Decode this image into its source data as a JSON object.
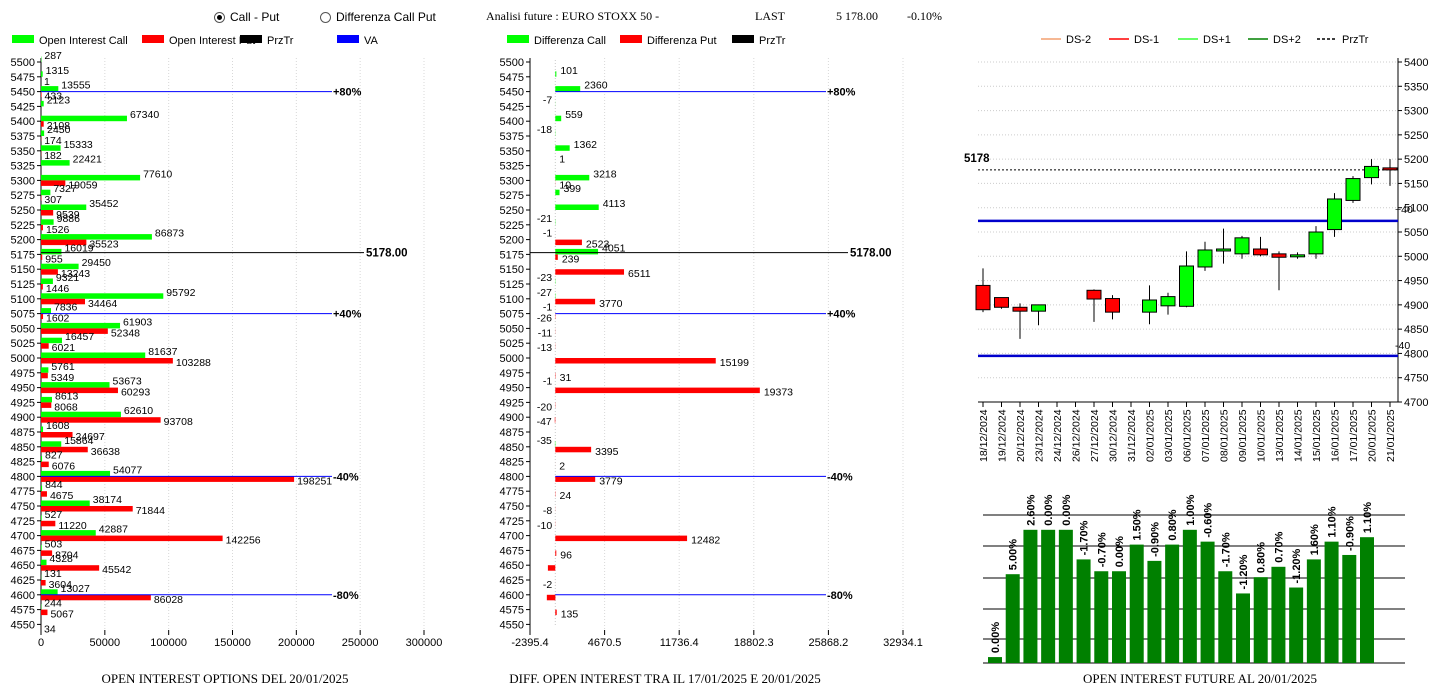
{
  "controls": {
    "radio_call_put": "Call - Put",
    "radio_diff": "Differenza Call Put",
    "selected": "call_put"
  },
  "header": {
    "title": "Analisi future : EURO STOXX 50 -",
    "last_label": "LAST",
    "last_value": "5 178.00",
    "change": "-0.10%"
  },
  "colors": {
    "call": "#00ff00",
    "put": "#ff0000",
    "prztr": "#000000",
    "va": "#0000ff",
    "bar_green": "#008000"
  },
  "captions": {
    "left": "OPEN INTEREST OPTIONS DEL 20/01/2025",
    "mid": "DIFF. OPEN INTEREST TRA IL 17/01/2025 E 20/01/2025",
    "right": "OPEN INTEREST FUTURE AL 20/01/2025"
  },
  "chart_data": [
    {
      "id": "oi",
      "type": "bar",
      "legend": [
        "Open Interest Call",
        "Open Interest Put",
        "PrzTr",
        "VA"
      ],
      "strikes": [
        5500,
        5475,
        5450,
        5425,
        5400,
        5375,
        5350,
        5325,
        5300,
        5275,
        5250,
        5225,
        5200,
        5175,
        5150,
        5125,
        5100,
        5075,
        5050,
        5025,
        5000,
        4975,
        4950,
        4925,
        4900,
        4875,
        4850,
        4825,
        4800,
        4775,
        4750,
        4725,
        4700,
        4675,
        4650,
        4625,
        4600,
        4575,
        4550
      ],
      "call": [
        287,
        1315,
        13555,
        2123,
        67340,
        2450,
        15333,
        22421,
        77610,
        7327,
        35452,
        9886,
        86873,
        16019,
        29450,
        9321,
        95792,
        7836,
        61903,
        16457,
        81637,
        5761,
        53673,
        8613,
        62610,
        1608,
        15864,
        827,
        54077,
        844,
        38174,
        527,
        42887,
        503,
        4328,
        131,
        13027,
        244,
        0
      ],
      "put": [
        0,
        1,
        433,
        0,
        2108,
        174,
        182,
        0,
        19059,
        307,
        9539,
        1526,
        35523,
        955,
        13243,
        1446,
        34464,
        1602,
        52348,
        6021,
        103288,
        5349,
        60293,
        8068,
        93708,
        24697,
        36638,
        6076,
        198251,
        4675,
        71844,
        11220,
        142256,
        8704,
        45542,
        3604,
        86028,
        5067,
        34
      ],
      "xticks": [
        "0",
        "50000",
        "100000",
        "150000",
        "200000",
        "250000",
        "300000"
      ],
      "xmax": 300000,
      "price": 5178,
      "price_label": "5178.00",
      "levels": [
        {
          "strike": 5450,
          "label": "+80%"
        },
        {
          "strike": 5075,
          "label": "+40%"
        },
        {
          "strike": 4800,
          "label": "-40%"
        },
        {
          "strike": 4600,
          "label": "-80%"
        }
      ]
    },
    {
      "id": "diff",
      "type": "bar",
      "legend": [
        "Differenza Call",
        "Differenza Put",
        "PrzTr"
      ],
      "call": [
        null,
        101,
        2360,
        -7,
        559,
        -18,
        1362,
        1,
        3218,
        399,
        4113,
        -21,
        -1,
        4051,
        0,
        -23,
        -27,
        -1,
        0,
        0,
        0,
        0,
        -1,
        0,
        0,
        0,
        -35,
        0,
        0,
        0,
        0,
        0,
        0,
        0,
        0,
        0,
        0,
        0,
        0
      ],
      "put": [
        null,
        null,
        null,
        null,
        null,
        null,
        null,
        null,
        10,
        null,
        null,
        null,
        2523,
        239,
        6511,
        null,
        3770,
        -26,
        -11,
        -13,
        15199,
        31,
        19373,
        -20,
        -47,
        null,
        3395,
        2,
        3779,
        24,
        -8,
        -10,
        12482,
        96,
        null,
        -2,
        -80,
        135,
        null
      ],
      "call_labels": [
        "",
        "101",
        "2360",
        "-7",
        "559",
        "-18",
        "1362",
        "1",
        "3218",
        "399",
        "4113",
        "-21",
        "-1",
        "4051",
        "",
        "-23",
        "-27",
        "-1",
        "",
        "",
        "",
        "",
        "-1",
        "",
        "",
        "",
        "-35",
        "",
        "",
        "",
        "",
        "",
        "",
        "",
        "",
        "",
        "",
        "",
        ""
      ],
      "put_labels": [
        "",
        "",
        "",
        "",
        "",
        "",
        "",
        "",
        "10",
        "",
        "",
        "",
        "2523",
        "239",
        "6511",
        "",
        "3770",
        "-26",
        "-11",
        "-13",
        "15199",
        "31",
        "19373",
        "-20",
        "-47",
        "",
        "3395",
        "2",
        "3779",
        "24",
        "-8",
        "-10",
        "12482",
        "96",
        "",
        "-2",
        "",
        "135",
        ""
      ],
      "put_unlabeled": [
        0,
        0,
        0,
        0,
        0,
        0,
        0,
        0,
        0,
        0,
        0,
        0,
        0,
        0,
        0,
        0,
        0,
        0,
        0,
        0,
        0,
        0,
        0,
        0,
        0,
        0,
        0,
        0,
        0,
        0,
        0,
        0,
        0,
        0,
        -700,
        0,
        -800,
        0,
        0
      ],
      "xticks": [
        "-2395.4",
        "4670.5",
        "11736.4",
        "18802.3",
        "25868.2",
        "32934.1"
      ],
      "xmin": -2395.4,
      "xmax": 32934.1,
      "price_label": "5178.00"
    },
    {
      "id": "candles",
      "type": "candlestick",
      "legend": [
        "DS-2",
        "DS-1",
        "DS+1",
        "DS+2",
        "PrzTr"
      ],
      "dates": [
        "18/12/2024",
        "19/12/2024",
        "20/12/2024",
        "23/12/2024",
        "24/12/2024",
        "26/12/2024",
        "27/12/2024",
        "30/12/2024",
        "31/12/2024",
        "02/01/2025",
        "03/01/2025",
        "06/01/2025",
        "07/01/2025",
        "08/01/2025",
        "09/01/2025",
        "10/01/2025",
        "13/01/2025",
        "14/01/2025",
        "15/01/2025",
        "16/01/2025",
        "17/01/2025",
        "20/01/2025",
        "21/01/2025"
      ],
      "ohlc": [
        [
          4940,
          4975,
          4885,
          4890
        ],
        [
          4915,
          4915,
          4892,
          4895
        ],
        [
          4895,
          4903,
          4830,
          4887
        ],
        [
          4887,
          4897,
          4858,
          4900
        ],
        [
          null,
          null,
          null,
          null
        ],
        [
          null,
          null,
          null,
          null
        ],
        [
          4930,
          4932,
          4865,
          4912
        ],
        [
          4913,
          4920,
          4870,
          4885
        ],
        [
          null,
          null,
          null,
          null
        ],
        [
          4885,
          4940,
          4860,
          4910
        ],
        [
          4898,
          4925,
          4880,
          4917
        ],
        [
          4897,
          5010,
          4895,
          4980
        ],
        [
          4978,
          5030,
          4970,
          5013
        ],
        [
          5013,
          5057,
          4985,
          5015
        ],
        [
          5005,
          5042,
          4995,
          5038
        ],
        [
          5015,
          5040,
          5000,
          5003
        ],
        [
          5005,
          5010,
          4930,
          4998
        ],
        [
          5000,
          5008,
          4995,
          5003
        ],
        [
          5005,
          5062,
          4995,
          5050
        ],
        [
          5055,
          5130,
          5040,
          5118
        ],
        [
          5115,
          5165,
          5110,
          5160
        ],
        [
          5162,
          5200,
          5148,
          5185
        ],
        [
          5182,
          5200,
          5145,
          5178
        ]
      ],
      "yticks": [
        "5400",
        "5350",
        "5300",
        "5250",
        "5200",
        "5150",
        "5100",
        "5050",
        "5000",
        "4950",
        "4900",
        "4850",
        "4800",
        "4750",
        "4700"
      ],
      "ymin": 4700,
      "ymax": 5400,
      "price": 5178,
      "price_label": "5178",
      "upper_level": 5073,
      "upper_label": "+40",
      "lower_level": 4795,
      "lower_label": "-40"
    },
    {
      "id": "future_oi",
      "type": "bar",
      "labels": [
        "0.00%",
        "5.00%",
        "2.60%",
        "0.00%",
        "0.00%",
        "-1.70%",
        "-0.70%",
        "0.00%",
        "1.50%",
        "-0.90%",
        "0.80%",
        "1.00%",
        "-0.60%",
        "-1.70%",
        "-1.20%",
        "0.80%",
        "0.70%",
        "-1.20%",
        "1.60%",
        "1.10%",
        "-0.90%",
        "1.10%"
      ],
      "heights": [
        0.04,
        0.6,
        0.9,
        0.9,
        0.9,
        0.7,
        0.62,
        0.62,
        0.8,
        0.69,
        0.8,
        0.9,
        0.82,
        0.62,
        0.47,
        0.58,
        0.65,
        0.51,
        0.7,
        0.82,
        0.73,
        0.85
      ]
    }
  ]
}
